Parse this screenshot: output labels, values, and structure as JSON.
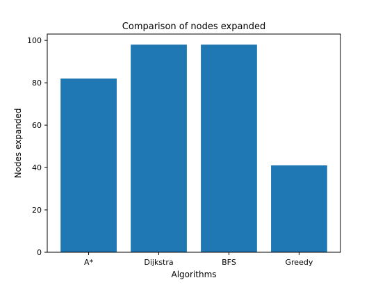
{
  "chart_data": {
    "type": "bar",
    "title": "Comparison of nodes expanded",
    "xlabel": "Algorithms",
    "ylabel": "Nodes expanded",
    "categories": [
      "A*",
      "Dijkstra",
      "BFS",
      "Greedy"
    ],
    "values": [
      82,
      98,
      98,
      41
    ],
    "ylim": [
      0,
      103
    ],
    "yticks": [
      0,
      20,
      40,
      60,
      80,
      100
    ],
    "grid": false,
    "bar_color": "#1f77b4"
  }
}
